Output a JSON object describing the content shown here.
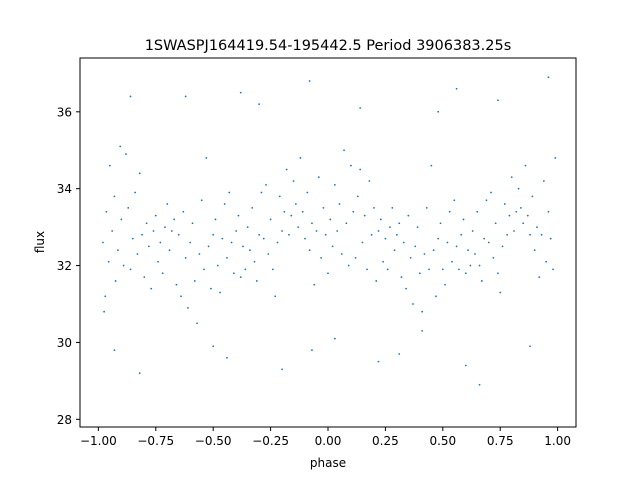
{
  "chart_data": {
    "type": "scatter",
    "title": "1SWASPJ164419.54-195442.5 Period 3906383.25s",
    "xlabel": "phase",
    "ylabel": "flux",
    "xlim": [
      -1.08,
      1.08
    ],
    "ylim": [
      27.8,
      37.4
    ],
    "grid": false,
    "legend": "none",
    "marker_color": "#1f77b4",
    "x_ticks": [
      {
        "value": -1.0,
        "label": "−1.00"
      },
      {
        "value": -0.75,
        "label": "−0.75"
      },
      {
        "value": -0.5,
        "label": "−0.50"
      },
      {
        "value": -0.25,
        "label": "−0.25"
      },
      {
        "value": 0.0,
        "label": "0.00"
      },
      {
        "value": 0.25,
        "label": "0.25"
      },
      {
        "value": 0.5,
        "label": "0.50"
      },
      {
        "value": 0.75,
        "label": "0.75"
      },
      {
        "value": 1.0,
        "label": "1.00"
      }
    ],
    "y_ticks": [
      {
        "value": 28,
        "label": "28"
      },
      {
        "value": 30,
        "label": "30"
      },
      {
        "value": 32,
        "label": "32"
      },
      {
        "value": 34,
        "label": "34"
      },
      {
        "value": 36,
        "label": "36"
      }
    ],
    "series": [
      {
        "points": [
          [
            -0.98,
            32.6
          ],
          [
            -0.97,
            31.2
          ],
          [
            -0.965,
            33.4
          ],
          [
            -0.955,
            32.1
          ],
          [
            -0.95,
            34.6
          ],
          [
            -0.94,
            32.9
          ],
          [
            -0.93,
            33.8
          ],
          [
            -0.925,
            31.6
          ],
          [
            -0.915,
            32.4
          ],
          [
            -0.905,
            35.1
          ],
          [
            -0.9,
            33.2
          ],
          [
            -0.89,
            32.0
          ],
          [
            -0.88,
            34.9
          ],
          [
            -0.87,
            33.5
          ],
          [
            -0.86,
            31.9
          ],
          [
            -0.85,
            32.7
          ],
          [
            -0.84,
            33.9
          ],
          [
            -0.83,
            32.3
          ],
          [
            -0.82,
            34.4
          ],
          [
            -0.81,
            32.8
          ],
          [
            -0.8,
            31.7
          ],
          [
            -0.79,
            33.1
          ],
          [
            -0.78,
            32.5
          ],
          [
            -0.77,
            31.4
          ],
          [
            -0.76,
            32.9
          ],
          [
            -0.75,
            33.3
          ],
          [
            -0.74,
            32.1
          ],
          [
            -0.73,
            32.6
          ],
          [
            -0.72,
            31.8
          ],
          [
            -0.71,
            33.0
          ],
          [
            -0.7,
            33.6
          ],
          [
            -0.69,
            32.4
          ],
          [
            -0.68,
            32.9
          ],
          [
            -0.67,
            33.2
          ],
          [
            -0.66,
            31.5
          ],
          [
            -0.65,
            32.8
          ],
          [
            -0.64,
            31.2
          ],
          [
            -0.63,
            33.4
          ],
          [
            -0.62,
            32.2
          ],
          [
            -0.61,
            30.9
          ],
          [
            -0.6,
            32.6
          ],
          [
            -0.59,
            33.1
          ],
          [
            -0.58,
            31.6
          ],
          [
            -0.57,
            30.5
          ],
          [
            -0.56,
            32.3
          ],
          [
            -0.55,
            33.7
          ],
          [
            -0.54,
            31.9
          ],
          [
            -0.53,
            34.8
          ],
          [
            -0.52,
            32.5
          ],
          [
            -0.51,
            31.4
          ],
          [
            -0.5,
            32.8
          ],
          [
            -0.49,
            33.2
          ],
          [
            -0.48,
            32.0
          ],
          [
            -0.47,
            31.3
          ],
          [
            -0.46,
            32.7
          ],
          [
            -0.45,
            33.6
          ],
          [
            -0.44,
            32.2
          ],
          [
            -0.43,
            33.9
          ],
          [
            -0.42,
            32.6
          ],
          [
            -0.41,
            31.8
          ],
          [
            -0.4,
            32.9
          ],
          [
            -0.39,
            33.3
          ],
          [
            -0.38,
            31.7
          ],
          [
            -0.37,
            32.5
          ],
          [
            -0.36,
            31.9
          ],
          [
            -0.35,
            33.0
          ],
          [
            -0.34,
            32.4
          ],
          [
            -0.33,
            33.5
          ],
          [
            -0.32,
            32.1
          ],
          [
            -0.31,
            31.6
          ],
          [
            -0.3,
            32.8
          ],
          [
            -0.29,
            33.9
          ],
          [
            -0.28,
            32.7
          ],
          [
            -0.27,
            34.1
          ],
          [
            -0.26,
            32.3
          ],
          [
            -0.25,
            33.2
          ],
          [
            -0.24,
            31.9
          ],
          [
            -0.23,
            31.2
          ],
          [
            -0.22,
            32.6
          ],
          [
            -0.21,
            33.8
          ],
          [
            -0.2,
            32.9
          ],
          [
            -0.19,
            33.4
          ],
          [
            -0.18,
            34.5
          ],
          [
            -0.17,
            32.8
          ],
          [
            -0.16,
            33.3
          ],
          [
            -0.15,
            34.2
          ],
          [
            -0.14,
            33.6
          ],
          [
            -0.13,
            33.0
          ],
          [
            -0.12,
            34.8
          ],
          [
            -0.11,
            33.4
          ],
          [
            -0.1,
            32.7
          ],
          [
            -0.09,
            33.9
          ],
          [
            -0.08,
            32.4
          ],
          [
            -0.07,
            33.1
          ],
          [
            -0.06,
            31.5
          ],
          [
            -0.05,
            32.9
          ],
          [
            -0.04,
            34.3
          ],
          [
            -0.03,
            32.2
          ],
          [
            -0.02,
            33.5
          ],
          [
            -0.01,
            32.8
          ],
          [
            0.0,
            31.8
          ],
          [
            0.01,
            33.2
          ],
          [
            0.02,
            32.5
          ],
          [
            0.03,
            34.1
          ],
          [
            0.04,
            32.9
          ],
          [
            0.05,
            33.6
          ],
          [
            0.06,
            32.3
          ],
          [
            0.07,
            35.0
          ],
          [
            0.08,
            33.1
          ],
          [
            0.09,
            32.0
          ],
          [
            0.1,
            34.6
          ],
          [
            0.11,
            33.4
          ],
          [
            0.12,
            32.2
          ],
          [
            0.13,
            33.8
          ],
          [
            0.14,
            34.5
          ],
          [
            0.15,
            32.6
          ],
          [
            0.16,
            33.3
          ],
          [
            0.17,
            31.9
          ],
          [
            0.18,
            34.2
          ],
          [
            0.19,
            32.8
          ],
          [
            0.2,
            33.5
          ],
          [
            0.21,
            31.6
          ],
          [
            0.22,
            32.9
          ],
          [
            0.23,
            33.2
          ],
          [
            0.24,
            32.1
          ],
          [
            0.25,
            32.7
          ],
          [
            0.26,
            31.9
          ],
          [
            0.27,
            33.0
          ],
          [
            0.28,
            33.5
          ],
          [
            0.29,
            32.4
          ],
          [
            0.3,
            32.8
          ],
          [
            0.31,
            33.1
          ],
          [
            0.32,
            31.7
          ],
          [
            0.33,
            32.6
          ],
          [
            0.34,
            31.4
          ],
          [
            0.35,
            33.3
          ],
          [
            0.36,
            32.2
          ],
          [
            0.37,
            31.0
          ],
          [
            0.38,
            32.5
          ],
          [
            0.39,
            33.0
          ],
          [
            0.4,
            31.8
          ],
          [
            0.41,
            30.8
          ],
          [
            0.42,
            32.3
          ],
          [
            0.43,
            33.5
          ],
          [
            0.44,
            31.9
          ],
          [
            0.45,
            34.6
          ],
          [
            0.46,
            32.4
          ],
          [
            0.47,
            31.2
          ],
          [
            0.48,
            32.7
          ],
          [
            0.49,
            33.1
          ],
          [
            0.5,
            31.9
          ],
          [
            0.51,
            31.5
          ],
          [
            0.52,
            32.6
          ],
          [
            0.53,
            33.4
          ],
          [
            0.54,
            32.1
          ],
          [
            0.55,
            33.7
          ],
          [
            0.56,
            32.5
          ],
          [
            0.57,
            31.9
          ],
          [
            0.58,
            32.8
          ],
          [
            0.59,
            33.2
          ],
          [
            0.6,
            31.8
          ],
          [
            0.61,
            32.4
          ],
          [
            0.62,
            32.0
          ],
          [
            0.63,
            32.9
          ],
          [
            0.64,
            32.3
          ],
          [
            0.65,
            33.4
          ],
          [
            0.66,
            32.0
          ],
          [
            0.67,
            31.6
          ],
          [
            0.68,
            32.7
          ],
          [
            0.69,
            33.7
          ],
          [
            0.7,
            32.6
          ],
          [
            0.71,
            33.9
          ],
          [
            0.72,
            32.2
          ],
          [
            0.73,
            33.1
          ],
          [
            0.74,
            31.8
          ],
          [
            0.75,
            31.3
          ],
          [
            0.76,
            32.5
          ],
          [
            0.77,
            33.6
          ],
          [
            0.78,
            32.8
          ],
          [
            0.79,
            33.3
          ],
          [
            0.8,
            34.3
          ],
          [
            0.81,
            32.9
          ],
          [
            0.82,
            33.4
          ],
          [
            0.83,
            34.0
          ],
          [
            0.84,
            33.5
          ],
          [
            0.85,
            33.1
          ],
          [
            0.86,
            34.6
          ],
          [
            0.87,
            33.3
          ],
          [
            0.88,
            32.8
          ],
          [
            0.89,
            33.8
          ],
          [
            0.9,
            32.4
          ],
          [
            0.91,
            33.0
          ],
          [
            0.92,
            31.7
          ],
          [
            0.93,
            32.8
          ],
          [
            0.94,
            34.2
          ],
          [
            0.95,
            32.1
          ],
          [
            0.96,
            33.4
          ],
          [
            0.97,
            32.7
          ],
          [
            0.98,
            31.9
          ],
          [
            0.99,
            34.8
          ],
          [
            -0.975,
            30.8
          ],
          [
            -0.93,
            29.8
          ],
          [
            -0.62,
            36.4
          ],
          [
            -0.44,
            29.6
          ],
          [
            -0.3,
            36.2
          ],
          [
            -0.2,
            29.3
          ],
          [
            -0.08,
            36.8
          ],
          [
            0.03,
            30.1
          ],
          [
            0.14,
            36.1
          ],
          [
            0.31,
            29.7
          ],
          [
            0.48,
            36.0
          ],
          [
            0.6,
            29.4
          ],
          [
            0.74,
            36.3
          ],
          [
            0.88,
            29.9
          ],
          [
            0.96,
            36.9
          ],
          [
            -0.82,
            29.2
          ],
          [
            -0.86,
            36.4
          ],
          [
            -0.5,
            29.9
          ],
          [
            0.22,
            29.5
          ],
          [
            0.41,
            30.3
          ],
          [
            0.66,
            28.9
          ],
          [
            -0.07,
            29.8
          ],
          [
            0.56,
            36.6
          ],
          [
            -0.38,
            36.5
          ]
        ]
      }
    ]
  }
}
